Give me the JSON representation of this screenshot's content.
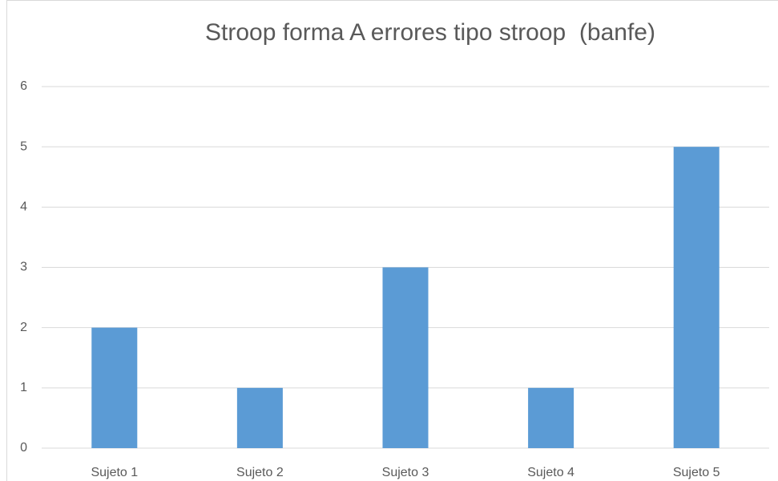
{
  "chart_data": {
    "type": "bar",
    "title": "Stroop forma A errores tipo stroop  (banfe)",
    "categories": [
      "Sujeto 1",
      "Sujeto 2",
      "Sujeto 3",
      "Sujeto 4",
      "Sujeto 5"
    ],
    "values": [
      2,
      1,
      3,
      1,
      5
    ],
    "color": "#5b9bd5",
    "ylim": [
      0,
      6
    ],
    "yticks": [
      0,
      1,
      2,
      3,
      4,
      5,
      6
    ],
    "grid": true
  }
}
